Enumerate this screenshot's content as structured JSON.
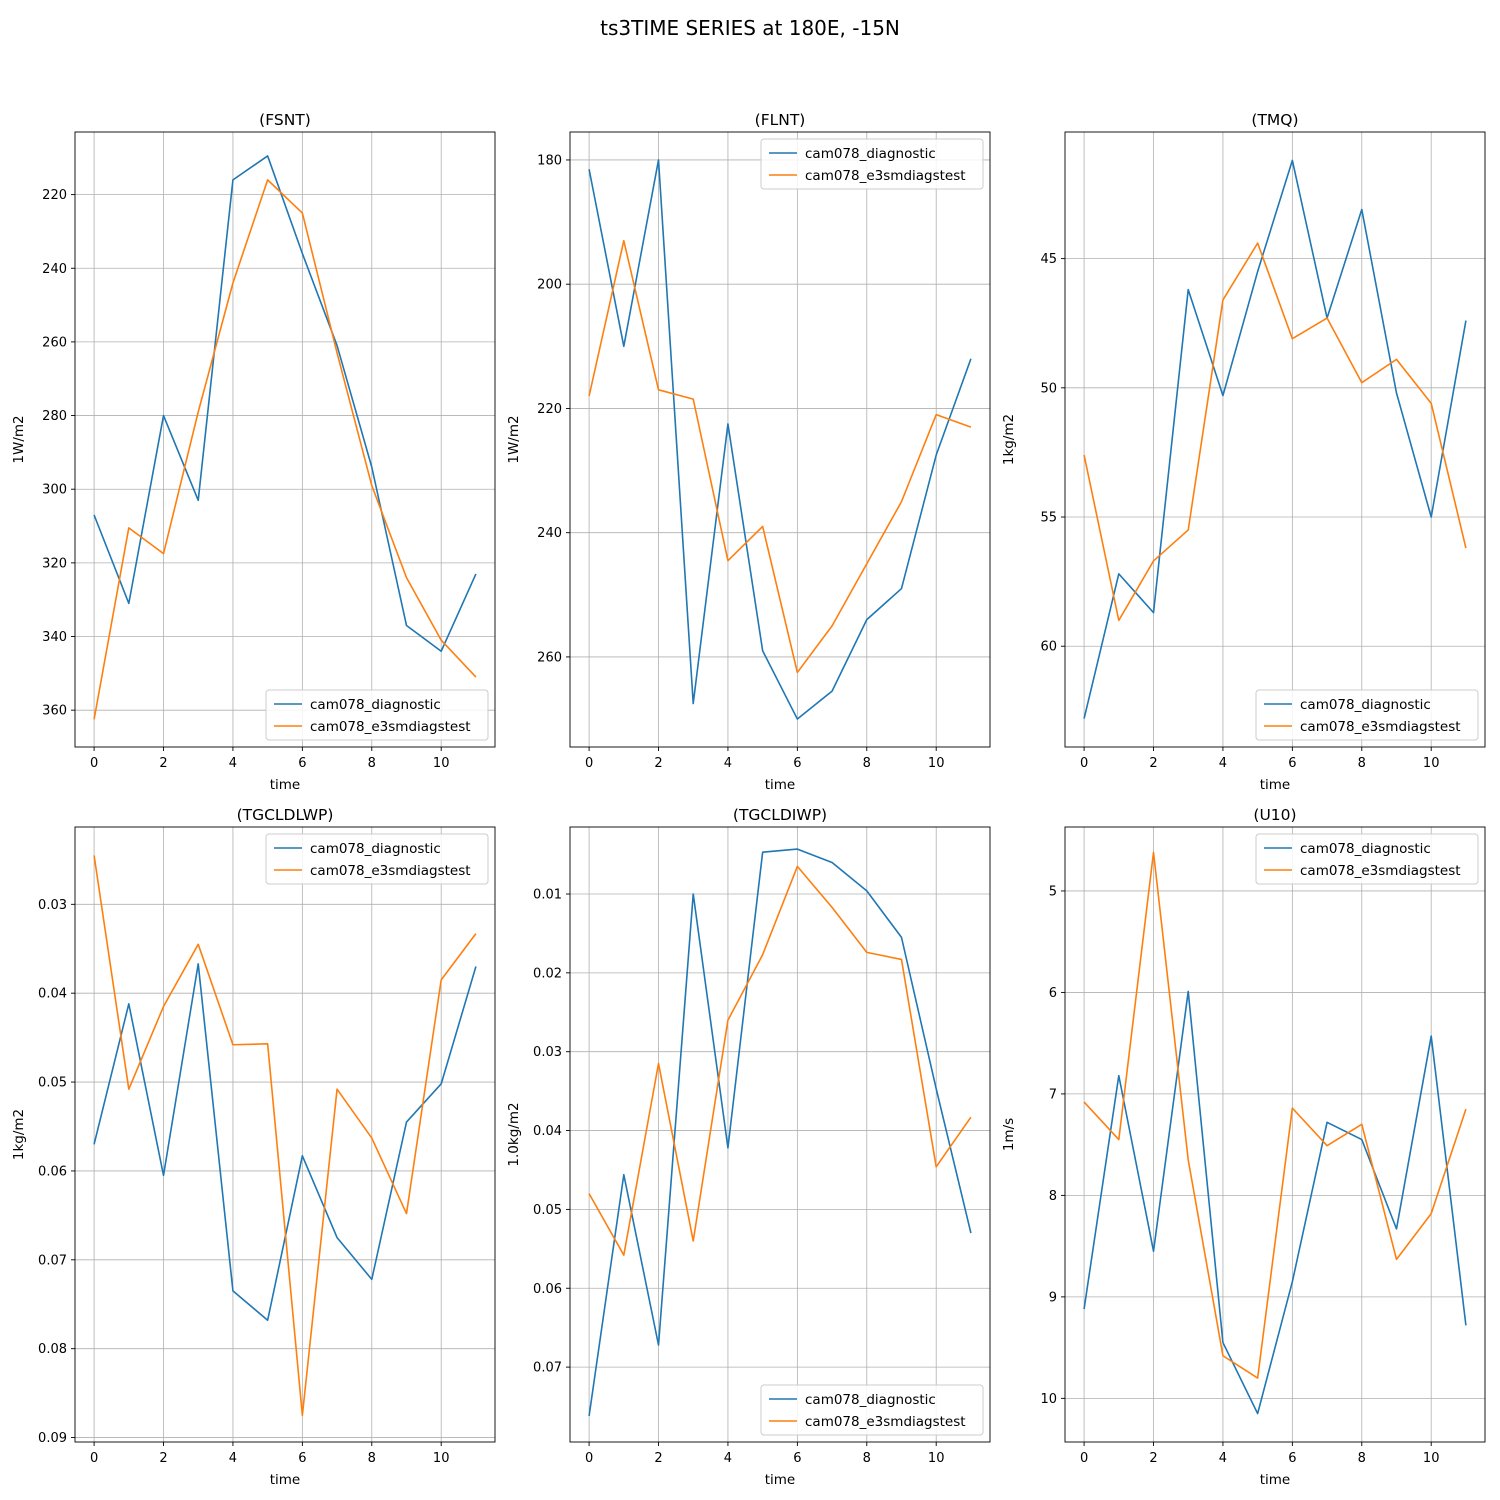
{
  "figure": {
    "title": "ts3TIME SERIES at 180E, -15N"
  },
  "colors": {
    "series": [
      "#1f77b4",
      "#ff7f0e"
    ],
    "grid": "#b0b0b0",
    "axis": "#000000"
  },
  "chart_data": [
    {
      "type": "line",
      "title": "(FSNT)",
      "xlabel": "time",
      "ylabel": "1W/m2",
      "x": [
        0,
        1,
        2,
        3,
        4,
        5,
        6,
        7,
        8,
        9,
        10,
        11
      ],
      "xticks": [
        0,
        2,
        4,
        6,
        8,
        10
      ],
      "xlim": [
        -0.55,
        11.55
      ],
      "ylim": [
        370,
        203
      ],
      "yinverted": true,
      "yticks": [
        220,
        240,
        260,
        280,
        300,
        320,
        340,
        360
      ],
      "grid": true,
      "legend": "lower right",
      "series": [
        {
          "name": "cam078_diagnostic",
          "values": [
            307,
            331,
            280,
            303,
            216,
            209.5,
            236,
            261,
            294,
            337,
            344,
            323
          ]
        },
        {
          "name": "cam078_e3smdiagstest",
          "values": [
            362.5,
            310.5,
            317.5,
            279,
            244,
            216,
            225,
            263,
            299,
            324,
            341,
            351
          ]
        }
      ]
    },
    {
      "type": "line",
      "title": "(FLNT)",
      "xlabel": "time",
      "ylabel": "1W/m2",
      "x": [
        0,
        1,
        2,
        3,
        4,
        5,
        6,
        7,
        8,
        9,
        10,
        11
      ],
      "xticks": [
        0,
        2,
        4,
        6,
        8,
        10
      ],
      "xlim": [
        -0.55,
        11.55
      ],
      "ylim": [
        274.5,
        175.5
      ],
      "yinverted": true,
      "yticks": [
        180,
        200,
        220,
        240,
        260
      ],
      "grid": true,
      "legend": "upper right",
      "series": [
        {
          "name": "cam078_diagnostic",
          "values": [
            181.5,
            210,
            180,
            267.5,
            222.5,
            259,
            270,
            265.5,
            254,
            249,
            227.5,
            212
          ]
        },
        {
          "name": "cam078_e3smdiagstest",
          "values": [
            218,
            193,
            217,
            218.5,
            244.5,
            239,
            262.5,
            255,
            245,
            235,
            221,
            223
          ]
        }
      ]
    },
    {
      "type": "line",
      "title": "(TMQ)",
      "xlabel": "time",
      "ylabel": "1kg/m2",
      "x": [
        0,
        1,
        2,
        3,
        4,
        5,
        6,
        7,
        8,
        9,
        10,
        11
      ],
      "xticks": [
        0,
        2,
        4,
        6,
        8,
        10
      ],
      "xlim": [
        -0.55,
        11.55
      ],
      "ylim": [
        63.9,
        40.1
      ],
      "yinverted": true,
      "yticks": [
        45,
        50,
        55,
        60
      ],
      "grid": true,
      "legend": "lower right",
      "series": [
        {
          "name": "cam078_diagnostic",
          "values": [
            62.8,
            57.2,
            58.7,
            46.2,
            50.3,
            45.5,
            41.2,
            47.3,
            43.1,
            50.2,
            55,
            47.4
          ]
        },
        {
          "name": "cam078_e3smdiagstest",
          "values": [
            52.6,
            59,
            56.7,
            55.5,
            46.6,
            44.4,
            48.1,
            47.3,
            49.8,
            48.9,
            50.6,
            56.2
          ]
        }
      ]
    },
    {
      "type": "line",
      "title": "(TGCLDLWP)",
      "xlabel": "time",
      "ylabel": "1kg/m2",
      "x": [
        0,
        1,
        2,
        3,
        4,
        5,
        6,
        7,
        8,
        9,
        10,
        11
      ],
      "xticks": [
        0,
        2,
        4,
        6,
        8,
        10
      ],
      "xlim": [
        -0.55,
        11.55
      ],
      "ylim": [
        0.0905,
        0.0213
      ],
      "yinverted": true,
      "yticks": [
        0.03,
        0.04,
        0.05,
        0.06,
        0.07,
        0.08,
        0.09
      ],
      "ytick_labels": [
        "0.03",
        "0.04",
        "0.05",
        "0.06",
        "0.07",
        "0.08",
        "0.09"
      ],
      "grid": true,
      "legend": "upper right",
      "series": [
        {
          "name": "cam078_diagnostic",
          "values": [
            0.057,
            0.0412,
            0.0605,
            0.0367,
            0.0735,
            0.0768,
            0.0583,
            0.0675,
            0.0722,
            0.0545,
            0.0502,
            0.037
          ]
        },
        {
          "name": "cam078_e3smdiagstest",
          "values": [
            0.0245,
            0.0508,
            0.0415,
            0.0345,
            0.0458,
            0.0457,
            0.0875,
            0.0508,
            0.0563,
            0.0648,
            0.0385,
            0.0333
          ]
        }
      ]
    },
    {
      "type": "line",
      "title": "(TGCLDIWP)",
      "xlabel": "time",
      "ylabel": "1.0kg/m2",
      "x": [
        0,
        1,
        2,
        3,
        4,
        5,
        6,
        7,
        8,
        9,
        10,
        11
      ],
      "xticks": [
        0,
        2,
        4,
        6,
        8,
        10
      ],
      "xlim": [
        -0.55,
        11.55
      ],
      "ylim": [
        0.0795,
        0.0015
      ],
      "yinverted": true,
      "yticks": [
        0.01,
        0.02,
        0.03,
        0.04,
        0.05,
        0.06,
        0.07
      ],
      "ytick_labels": [
        "0.01",
        "0.02",
        "0.03",
        "0.04",
        "0.05",
        "0.06",
        "0.07"
      ],
      "grid": true,
      "legend": "lower right",
      "series": [
        {
          "name": "cam078_diagnostic",
          "values": [
            0.0762,
            0.0456,
            0.0672,
            0.01,
            0.0422,
            0.0047,
            0.0043,
            0.006,
            0.0096,
            0.0155,
            0.0347,
            0.053
          ]
        },
        {
          "name": "cam078_e3smdiagstest",
          "values": [
            0.048,
            0.0558,
            0.0315,
            0.054,
            0.026,
            0.0177,
            0.0065,
            0.0117,
            0.0174,
            0.0183,
            0.0446,
            0.0383
          ]
        }
      ]
    },
    {
      "type": "line",
      "title": "(U10)",
      "xlabel": "time",
      "ylabel": "1m/s",
      "x": [
        0,
        1,
        2,
        3,
        4,
        5,
        6,
        7,
        8,
        9,
        10,
        11
      ],
      "xticks": [
        0,
        2,
        4,
        6,
        8,
        10
      ],
      "xlim": [
        -0.55,
        11.55
      ],
      "ylim": [
        10.43,
        4.37
      ],
      "yinverted": true,
      "yticks": [
        5,
        6,
        7,
        8,
        9,
        10
      ],
      "grid": true,
      "legend": "upper right",
      "series": [
        {
          "name": "cam078_diagnostic",
          "values": [
            9.12,
            6.82,
            8.55,
            5.99,
            9.45,
            10.15,
            8.85,
            7.28,
            7.45,
            8.33,
            6.43,
            9.28
          ]
        },
        {
          "name": "cam078_e3smdiagstest",
          "values": [
            7.08,
            7.45,
            4.62,
            7.65,
            9.58,
            9.8,
            7.14,
            7.51,
            7.3,
            8.63,
            8.18,
            7.15
          ]
        }
      ]
    }
  ]
}
